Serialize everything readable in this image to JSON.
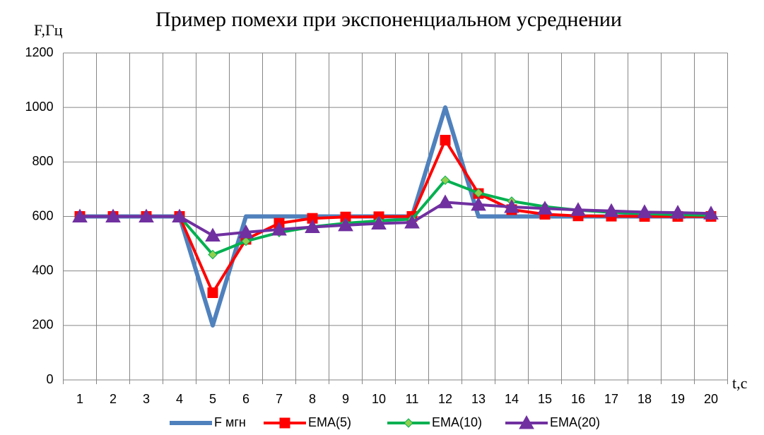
{
  "chart_data": {
    "type": "line",
    "title": "Пример помехи при экспоненциальном усреднении",
    "y_label": "F,Гц",
    "x_label": "t,c",
    "categories": [
      "1",
      "2",
      "3",
      "4",
      "5",
      "6",
      "7",
      "8",
      "9",
      "10",
      "11",
      "12",
      "13",
      "14",
      "15",
      "16",
      "17",
      "18",
      "19",
      "20"
    ],
    "series": [
      {
        "name": "F мгн",
        "color": "#4f81bd",
        "marker": "none",
        "values": [
          600,
          600,
          600,
          600,
          200,
          600,
          600,
          600,
          600,
          600,
          600,
          1000,
          600,
          600,
          600,
          600,
          600,
          600,
          600,
          600
        ]
      },
      {
        "name": "EMA(5)",
        "color": "#ff0000",
        "marker": "square",
        "values": [
          600,
          600,
          600,
          600,
          320,
          516,
          575,
          593,
          598,
          599,
          600,
          880,
          684,
          625,
          608,
          602,
          601,
          600,
          600,
          600
        ]
      },
      {
        "name": "EMA(10)",
        "color": "#00b050",
        "marker": "diamond",
        "values": [
          600,
          600,
          600,
          600,
          460,
          509,
          541,
          562,
          575,
          584,
          590,
          733,
          686,
          656,
          636,
          623,
          615,
          610,
          606,
          604
        ]
      },
      {
        "name": "EMA(20)",
        "color": "#7030a0",
        "marker": "triangle",
        "values": [
          600,
          600,
          600,
          600,
          530,
          542,
          552,
          561,
          568,
          574,
          578,
          652,
          643,
          635,
          629,
          624,
          620,
          616,
          614,
          611
        ]
      }
    ],
    "ylim": [
      0,
      1200
    ],
    "yticks": [
      0,
      200,
      400,
      600,
      800,
      1000,
      1200
    ],
    "grid": true,
    "legend": "bottom"
  }
}
